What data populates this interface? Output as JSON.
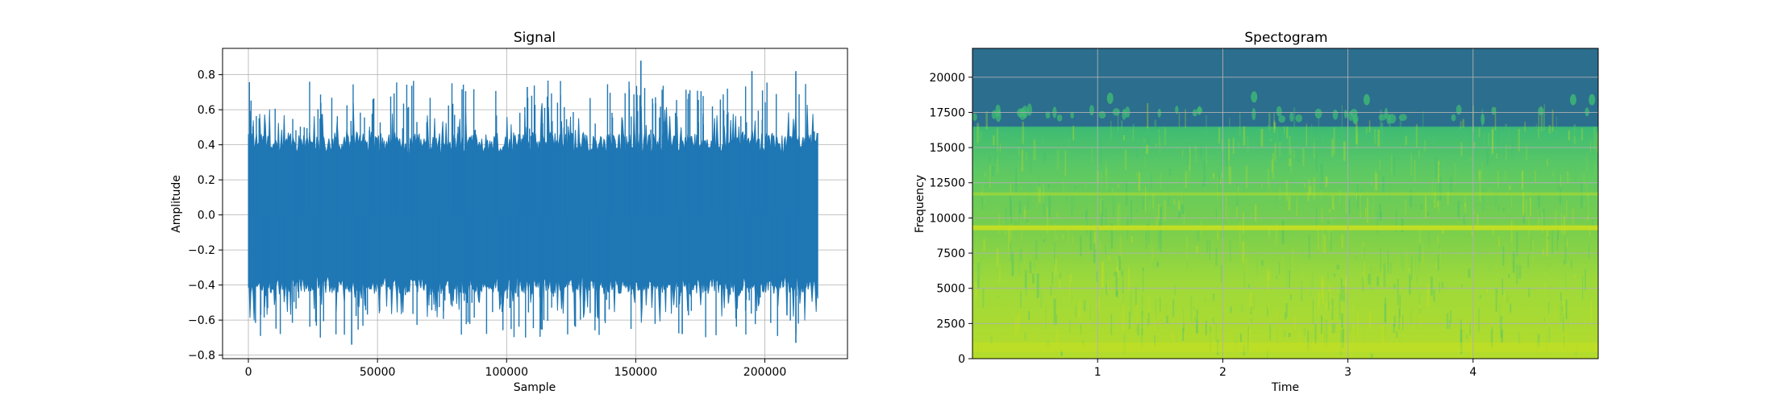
{
  "chart_data": [
    {
      "type": "line",
      "title": "Signal",
      "xlabel": "Sample",
      "ylabel": "Amplitude",
      "xlim": [
        -10000,
        232000
      ],
      "ylim": [
        -0.82,
        0.95
      ],
      "grid": true,
      "xticks": [
        0,
        50000,
        100000,
        150000,
        200000
      ],
      "xtick_labels": [
        "0",
        "50000",
        "100000",
        "150000",
        "200000"
      ],
      "yticks": [
        -0.8,
        -0.6,
        -0.4,
        -0.2,
        0.0,
        0.2,
        0.4,
        0.6,
        0.8
      ],
      "ytick_labels": [
        "−0.8",
        "−0.6",
        "−0.4",
        "−0.2",
        "0.0",
        "0.2",
        "0.4",
        "0.6",
        "0.8"
      ],
      "x_start": 0,
      "x_end": 220500,
      "typical_envelope": [
        -0.35,
        0.35
      ],
      "peak_max": 0.88,
      "peak_min": -0.74,
      "color": "#1f77b4"
    },
    {
      "type": "heatmap",
      "title": "Spectogram",
      "xlabel": "Time",
      "ylabel": "Frequency",
      "xlim": [
        0,
        5.0
      ],
      "ylim": [
        0,
        22050
      ],
      "grid": true,
      "xticks": [
        1,
        2,
        3,
        4
      ],
      "xtick_labels": [
        "1",
        "2",
        "3",
        "4"
      ],
      "yticks": [
        0,
        2500,
        5000,
        7500,
        10000,
        12500,
        15000,
        17500,
        20000
      ],
      "ytick_labels": [
        "0",
        "2500",
        "5000",
        "7500",
        "10000",
        "12500",
        "15000",
        "17500",
        "20000"
      ],
      "colormap": "viridis",
      "band_strong_hz": 9300,
      "band_secondary_hz": 11700,
      "cutoff_hz": 16500,
      "high_freq_color": "#2c6e8e"
    }
  ]
}
